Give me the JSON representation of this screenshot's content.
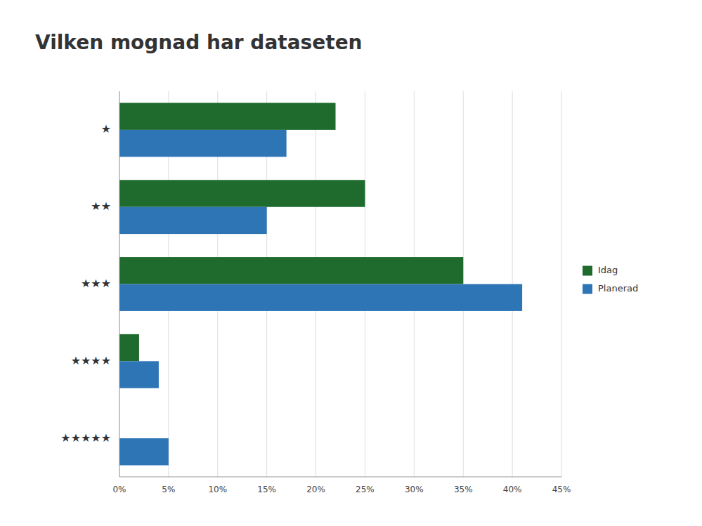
{
  "chart_data": {
    "type": "bar",
    "orientation": "horizontal",
    "title": "Vilken mognad har dataseten",
    "categories": [
      "★",
      "★★",
      "★★★",
      "★★★★",
      "★★★★★"
    ],
    "series": [
      {
        "name": "Idag",
        "color": "#1F6B2E",
        "values": [
          22,
          25,
          35,
          2,
          0
        ]
      },
      {
        "name": "Planerad",
        "color": "#2E75B6",
        "values": [
          17,
          15,
          41,
          4,
          5
        ]
      }
    ],
    "xlim": [
      0,
      45
    ],
    "xticks": [
      {
        "value": 0,
        "label": "0%"
      },
      {
        "value": 5,
        "label": "5%"
      },
      {
        "value": 10,
        "label": "10%"
      },
      {
        "value": 15,
        "label": "15%"
      },
      {
        "value": 20,
        "label": "20%"
      },
      {
        "value": 25,
        "label": "25%"
      },
      {
        "value": 30,
        "label": "30%"
      },
      {
        "value": 35,
        "label": "35%"
      },
      {
        "value": 40,
        "label": "40%"
      },
      {
        "value": 45,
        "label": "45%"
      }
    ],
    "grid": true,
    "legend": "right"
  }
}
